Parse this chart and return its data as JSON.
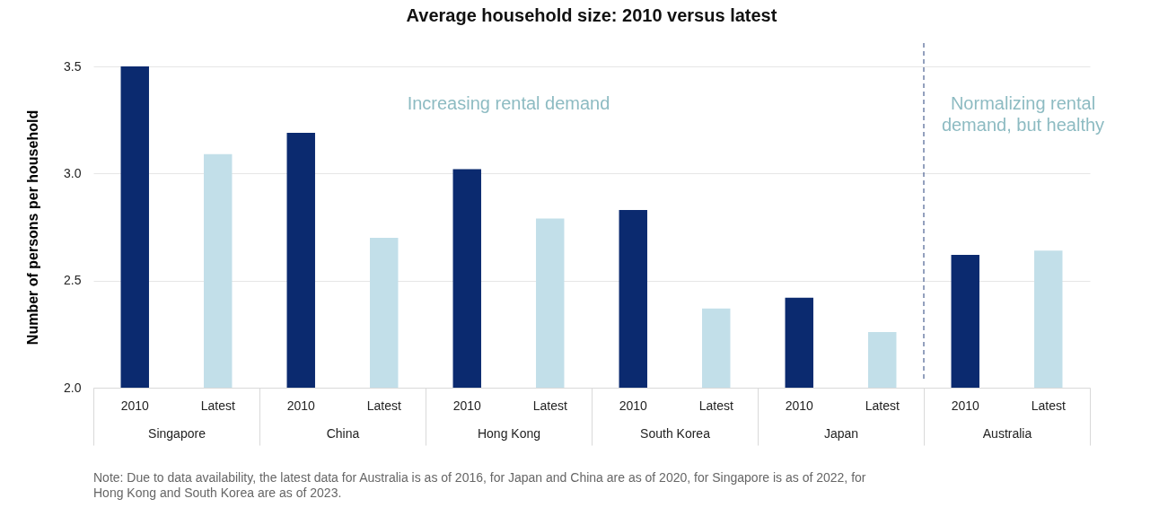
{
  "chart_data": {
    "type": "bar",
    "title": "Average household size: 2010 versus latest",
    "ylabel": "Number of persons per household",
    "categories": [
      "Singapore",
      "China",
      "Hong Kong",
      "South Korea",
      "Japan",
      "Australia"
    ],
    "series": [
      {
        "name": "2010",
        "color": "#0b2a6f",
        "values": [
          3.5,
          3.19,
          3.02,
          2.83,
          2.42,
          2.62
        ]
      },
      {
        "name": "Latest",
        "color": "#c2dfe9",
        "values": [
          3.09,
          2.7,
          2.79,
          2.37,
          2.26,
          2.64
        ]
      }
    ],
    "ylim": [
      2.0,
      3.5
    ],
    "yticks": [
      {
        "value": 2.0,
        "label": "2.0"
      },
      {
        "value": 2.5,
        "label": "2.5"
      },
      {
        "value": 3.0,
        "label": "3.0"
      },
      {
        "value": 3.5,
        "label": "3.5"
      }
    ],
    "grid": "y",
    "legend": false,
    "ref_lines": [
      {
        "axis": "x",
        "value": "Australia",
        "color": "#5a6e9a",
        "line_style": "dashed"
      }
    ],
    "annotations": [
      "Increasing rental demand",
      "Normalizing rental demand, but healthy",
      "Note: Due to data availability, the latest data for Australia is as of 2016, for Japan and China are as of 2020, for Singapore is as of 2022, for Hong Kong and South Korea are as of 2023."
    ]
  }
}
